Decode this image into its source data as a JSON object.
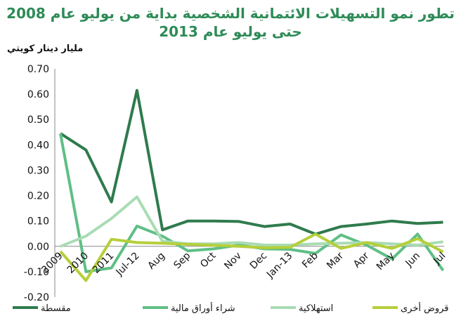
{
  "chart_data": {
    "type": "line",
    "title_line1": "تطور نمو التسهيلات الائتمانية الشخصية بداية من يوليو عام 2008",
    "title_line2": "حتى يوليو عام 2013",
    "ylabel": "مليار دينار كويتي",
    "xlabel": "",
    "categories": [
      "2009",
      "2010",
      "2011",
      "Jul-12",
      "Aug",
      "Sep",
      "Oct",
      "Nov",
      "Dec",
      "Jan-13",
      "Feb",
      "Mar",
      "Apr",
      "May",
      "Jun",
      "Jul"
    ],
    "ylim": [
      -0.2,
      0.7
    ],
    "yticks": [
      "0.70",
      "0.60",
      "0.50",
      "0.40",
      "0.30",
      "0.20",
      "0.10",
      "0.00",
      "-0.10",
      "-0.20"
    ],
    "ytick_values": [
      0.7,
      0.6,
      0.5,
      0.4,
      0.3,
      0.2,
      0.1,
      0.0,
      -0.1,
      -0.2
    ],
    "grid": false,
    "legend_position": "bottom",
    "series": [
      {
        "name": "مقسطة",
        "color": "#2f7b4d",
        "values": [
          0.445,
          0.38,
          0.175,
          0.615,
          0.065,
          0.1,
          0.1,
          0.098,
          0.078,
          0.088,
          0.048,
          0.078,
          0.088,
          0.1,
          0.09,
          0.095
        ]
      },
      {
        "name": "شراء أوراق مالية",
        "color": "#5fbf86",
        "values": [
          0.445,
          -0.1,
          -0.085,
          0.08,
          0.04,
          -0.018,
          -0.01,
          0.005,
          -0.01,
          -0.012,
          -0.028,
          0.045,
          0.005,
          -0.05,
          0.048,
          -0.095
        ]
      },
      {
        "name": "استهلاكية",
        "color": "#a9dcb4",
        "values": [
          0.0,
          0.04,
          0.11,
          0.195,
          0.02,
          0.01,
          0.01,
          0.015,
          0.005,
          0.005,
          0.01,
          0.012,
          0.015,
          0.01,
          0.005,
          0.018
        ]
      },
      {
        "name": "قروض أخرى",
        "color": "#b5cf3a",
        "values": [
          -0.02,
          -0.135,
          0.028,
          0.015,
          0.012,
          0.008,
          0.004,
          0.0,
          -0.006,
          -0.004,
          0.048,
          -0.008,
          0.015,
          -0.008,
          0.03,
          -0.022
        ]
      }
    ]
  }
}
